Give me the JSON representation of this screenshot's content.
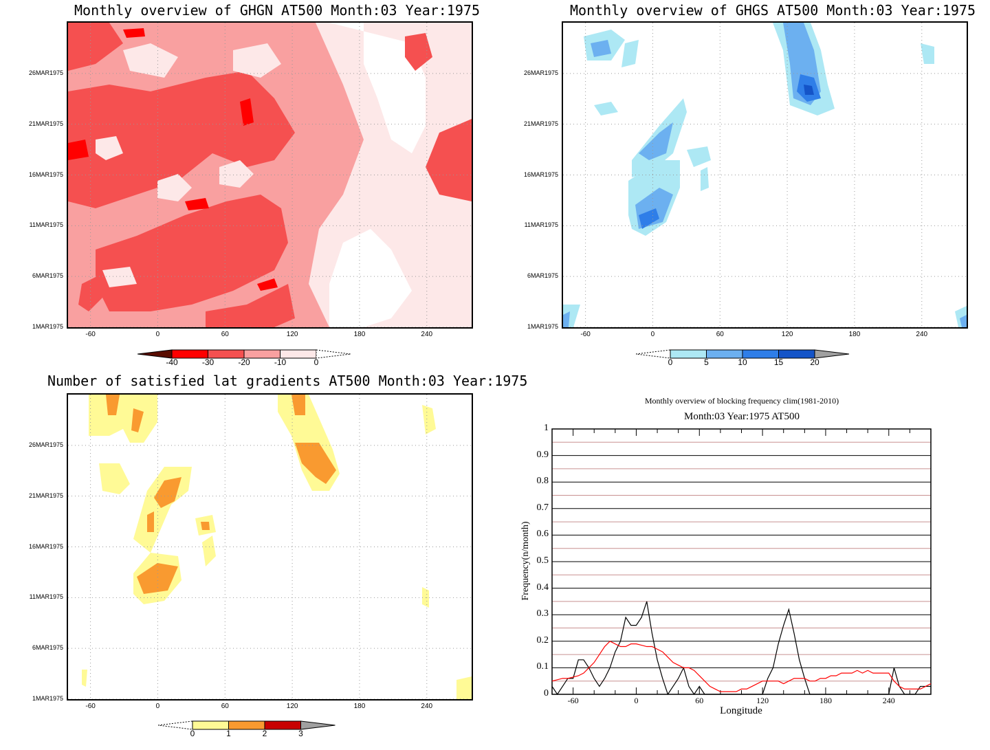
{
  "chart_data": [
    {
      "type": "heatmap",
      "title": "Monthly overview of GHGN AT500 Month:03 Year:1975",
      "x_ticks": [
        "-60",
        "0",
        "60",
        "120",
        "180",
        "240"
      ],
      "y_ticks": [
        "1MAR1975",
        "6MAR1975",
        "11MAR1975",
        "16MAR1975",
        "21MAR1975",
        "26MAR1975"
      ],
      "xlim": [
        -80,
        280
      ],
      "colorbar": {
        "labels": [
          "-40",
          "-30",
          "-20",
          "-10",
          "0"
        ],
        "colors": [
          "#5a0d00",
          "#ff0000",
          "#f55050",
          "#f9a0a0",
          "#fde8e8"
        ]
      }
    },
    {
      "type": "heatmap",
      "title": "Monthly overview of GHGS AT500 Month:03 Year:1975",
      "x_ticks": [
        "-60",
        "0",
        "60",
        "120",
        "180",
        "240"
      ],
      "y_ticks": [
        "1MAR1975",
        "6MAR1975",
        "11MAR1975",
        "16MAR1975",
        "21MAR1975",
        "26MAR1975"
      ],
      "xlim": [
        -80,
        280
      ],
      "colorbar": {
        "labels": [
          "0",
          "5",
          "10",
          "15",
          "20"
        ],
        "colors": [
          "#ade8f4",
          "#6cb0f0",
          "#2f7ee8",
          "#1454c8",
          "#a0a0a0"
        ]
      }
    },
    {
      "type": "heatmap",
      "title": "Number of satisfied lat gradients AT500 Month:03 Year:1975",
      "x_ticks": [
        "-60",
        "0",
        "60",
        "120",
        "180",
        "240"
      ],
      "y_ticks": [
        "1MAR1975",
        "6MAR1975",
        "11MAR1975",
        "16MAR1975",
        "21MAR1975",
        "26MAR1975"
      ],
      "xlim": [
        -80,
        280
      ],
      "colorbar": {
        "labels": [
          "0",
          "1",
          "2",
          "3"
        ],
        "colors": [
          "#fffa96",
          "#f99a30",
          "#c80000",
          "#a0a0a0"
        ]
      }
    },
    {
      "type": "line",
      "title": "Monthly overview of blocking frequency clim(1981-2010)",
      "subtitle": "Month:03 Year:1975  AT500",
      "xlabel": "Longitude",
      "ylabel": "Frequency(n/month)",
      "xlim": [
        -80,
        280
      ],
      "ylim": [
        0,
        1
      ],
      "x_ticks": [
        "-60",
        "0",
        "60",
        "120",
        "180",
        "240"
      ],
      "y_ticks": [
        "0",
        "0.1",
        "0.2",
        "0.3",
        "0.4",
        "0.5",
        "0.6",
        "0.7",
        "0.8",
        "0.9",
        "1"
      ],
      "series": [
        {
          "color": "#000000",
          "x": [
            -80,
            -75,
            -70,
            -65,
            -60,
            -55,
            -50,
            -45,
            -40,
            -35,
            -30,
            -25,
            -20,
            -15,
            -10,
            -5,
            0,
            5,
            10,
            15,
            20,
            25,
            30,
            35,
            40,
            45,
            50,
            55,
            60,
            65,
            70,
            75,
            80,
            85,
            90,
            95,
            100,
            105,
            110,
            115,
            120,
            125,
            130,
            135,
            140,
            145,
            150,
            155,
            160,
            165,
            170,
            175,
            180,
            185,
            190,
            195,
            200,
            205,
            210,
            215,
            220,
            225,
            230,
            235,
            240,
            245,
            250,
            255,
            260,
            265,
            270,
            275,
            280
          ],
          "values": [
            0.03,
            0,
            0.03,
            0.06,
            0.06,
            0.13,
            0.13,
            0.1,
            0.06,
            0.03,
            0.06,
            0.1,
            0.16,
            0.2,
            0.29,
            0.26,
            0.26,
            0.29,
            0.35,
            0.23,
            0.13,
            0.06,
            0,
            0.03,
            0.06,
            0.1,
            0.03,
            0,
            0.03,
            0,
            0,
            0,
            0,
            0,
            0,
            0,
            0,
            0,
            0,
            0,
            0,
            0.06,
            0.1,
            0.19,
            0.26,
            0.32,
            0.23,
            0.13,
            0.06,
            0,
            0,
            0,
            0,
            0,
            0,
            0,
            0,
            0,
            0,
            0,
            0,
            0,
            0,
            0,
            0,
            0.1,
            0.03,
            0,
            0,
            0,
            0.03,
            0.03,
            0.03
          ]
        },
        {
          "color": "#ff0000",
          "x": [
            -80,
            -75,
            -70,
            -65,
            -60,
            -55,
            -50,
            -45,
            -40,
            -35,
            -30,
            -25,
            -20,
            -15,
            -10,
            -5,
            0,
            5,
            10,
            15,
            20,
            25,
            30,
            35,
            40,
            45,
            50,
            55,
            60,
            65,
            70,
            75,
            80,
            85,
            90,
            95,
            100,
            105,
            110,
            115,
            120,
            125,
            130,
            135,
            140,
            145,
            150,
            155,
            160,
            165,
            170,
            175,
            180,
            185,
            190,
            195,
            200,
            205,
            210,
            215,
            220,
            225,
            230,
            235,
            240,
            245,
            250,
            255,
            260,
            265,
            270,
            275,
            280
          ],
          "values": [
            0.05,
            0.055,
            0.06,
            0.06,
            0.065,
            0.07,
            0.08,
            0.1,
            0.12,
            0.15,
            0.18,
            0.2,
            0.19,
            0.18,
            0.18,
            0.19,
            0.19,
            0.185,
            0.18,
            0.18,
            0.17,
            0.16,
            0.14,
            0.12,
            0.11,
            0.1,
            0.1,
            0.09,
            0.07,
            0.05,
            0.03,
            0.02,
            0.01,
            0.01,
            0.01,
            0.01,
            0.02,
            0.02,
            0.03,
            0.04,
            0.05,
            0.05,
            0.05,
            0.05,
            0.04,
            0.05,
            0.06,
            0.06,
            0.06,
            0.05,
            0.05,
            0.06,
            0.06,
            0.07,
            0.07,
            0.08,
            0.08,
            0.08,
            0.09,
            0.08,
            0.09,
            0.08,
            0.08,
            0.08,
            0.08,
            0.05,
            0.03,
            0.02,
            0.02,
            0.02,
            0.02,
            0.03,
            0.04
          ]
        }
      ]
    }
  ]
}
